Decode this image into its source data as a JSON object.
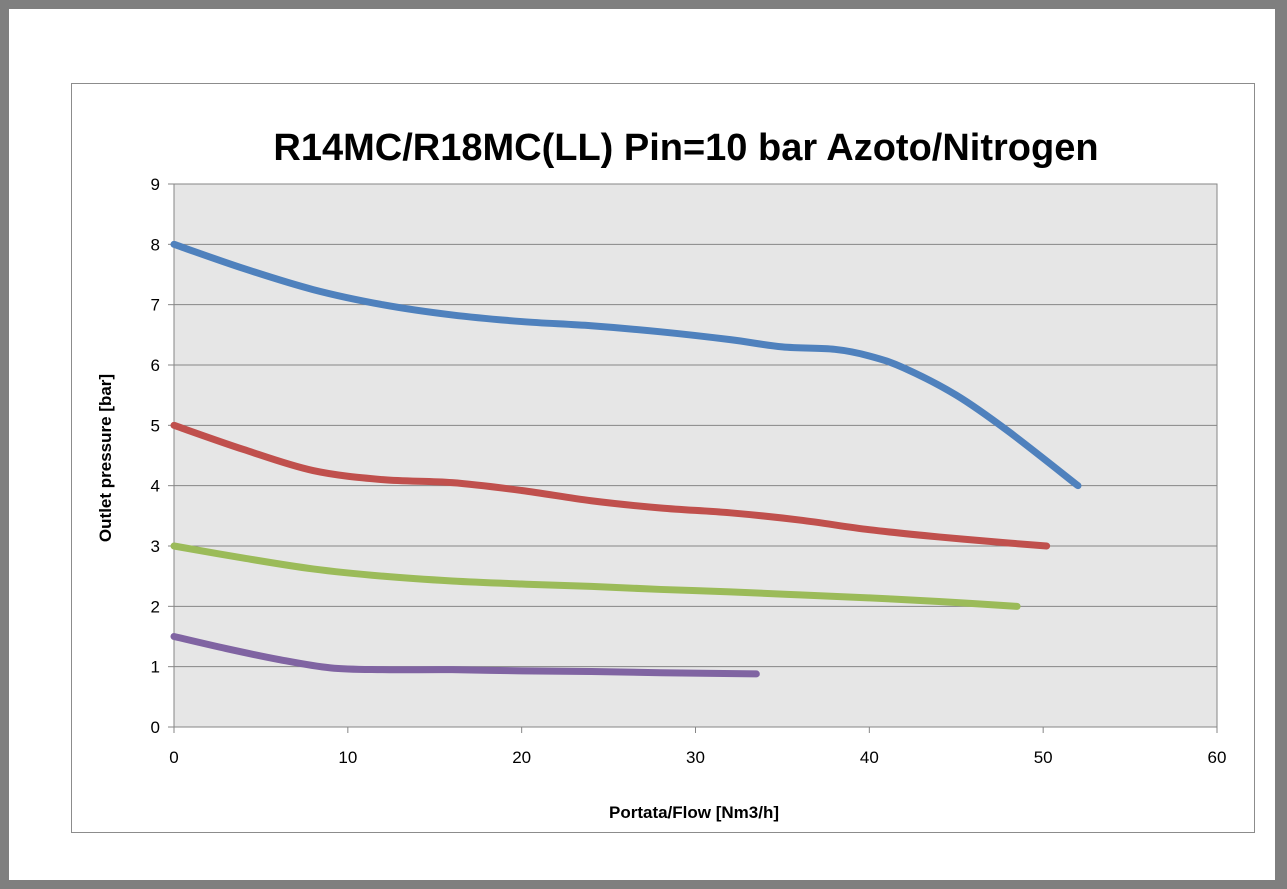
{
  "chart_data": {
    "type": "line",
    "title": "R14MC/R18MC(LL) Pin=10 bar Azoto/Nitrogen",
    "xlabel": "Portata/Flow [Nm3/h]",
    "ylabel": "Outlet pressure [bar]",
    "xlim": [
      0,
      60
    ],
    "ylim": [
      0,
      9
    ],
    "x_ticks": [
      0,
      10,
      20,
      30,
      40,
      50,
      60
    ],
    "y_ticks": [
      0,
      1,
      2,
      3,
      4,
      5,
      6,
      7,
      8,
      9
    ],
    "grid": "horizontal",
    "plot_background": "#e6e6e6",
    "series": [
      {
        "color": "#4f81bd",
        "x": [
          0,
          4,
          8,
          12,
          16,
          20,
          24,
          28,
          32,
          35,
          38,
          40,
          42,
          45,
          48,
          52
        ],
        "y": [
          8.0,
          7.6,
          7.25,
          7.0,
          6.83,
          6.72,
          6.65,
          6.55,
          6.42,
          6.3,
          6.26,
          6.15,
          5.95,
          5.5,
          4.9,
          4.0
        ]
      },
      {
        "color": "#c0504d",
        "x": [
          0,
          4,
          8,
          12,
          16,
          20,
          24,
          28,
          32,
          36,
          40,
          44,
          48,
          50.2
        ],
        "y": [
          5.0,
          4.6,
          4.25,
          4.1,
          4.05,
          3.92,
          3.75,
          3.63,
          3.55,
          3.43,
          3.27,
          3.15,
          3.05,
          3.0
        ]
      },
      {
        "color": "#9bbb59",
        "x": [
          0,
          4,
          8,
          12,
          16,
          20,
          24,
          28,
          32,
          36,
          40,
          44,
          48.5
        ],
        "y": [
          3.0,
          2.8,
          2.62,
          2.5,
          2.42,
          2.37,
          2.33,
          2.28,
          2.24,
          2.19,
          2.14,
          2.08,
          2.0
        ]
      },
      {
        "color": "#8064a2",
        "x": [
          0,
          3,
          6,
          9,
          12,
          16,
          20,
          24,
          28,
          33.5
        ],
        "y": [
          1.5,
          1.3,
          1.12,
          0.98,
          0.95,
          0.95,
          0.93,
          0.92,
          0.9,
          0.88
        ]
      }
    ]
  }
}
